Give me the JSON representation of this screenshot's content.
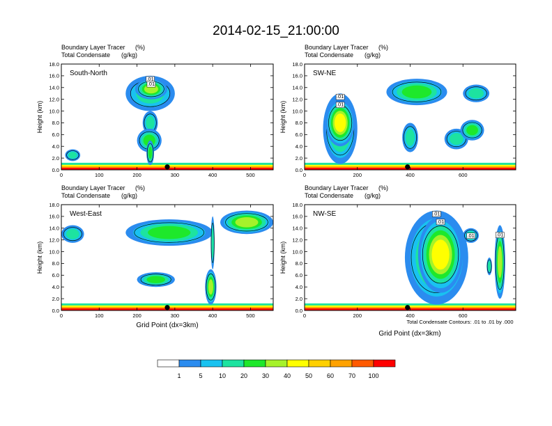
{
  "figure": {
    "title": "2014-02-15_21:00:00",
    "header_line1": "Boundary Layer Tracer",
    "header_line1_unit": "(%)",
    "header_line2": "Total Condensate",
    "header_line2_unit": "(g/kg)",
    "ylabel": "Height (km)",
    "xlabel": "Grid Point (dx=3km)",
    "contour_note": "Total Condensate Contours: .01 to .01 by .000"
  },
  "colorbar": {
    "labels": [
      "1",
      "5",
      "10",
      "20",
      "30",
      "40",
      "50",
      "60",
      "70",
      "100"
    ],
    "colors": [
      "#ffffff",
      "#2b8cef",
      "#19c2f0",
      "#1de3a0",
      "#1ee82b",
      "#a6f22a",
      "#ffff00",
      "#ffd000",
      "#ffa200",
      "#ff5a00",
      "#ff0000"
    ]
  },
  "chart_data": [
    {
      "type": "heatmap",
      "panel_label": "South-North",
      "xlim": [
        0,
        560
      ],
      "ylim": [
        0,
        18
      ],
      "xticks": [
        "0",
        "100",
        "200",
        "300",
        "400",
        "500"
      ],
      "yticks": [
        "0.0",
        "2.0",
        "4.0",
        "6.0",
        "8.0",
        "10.0",
        "12.0",
        "14.0",
        "16.0",
        "18.0"
      ],
      "contour_labels": [
        ".01",
        ".01"
      ],
      "marker_x": 280,
      "cells": [
        {
          "x": [
            170,
            300
          ],
          "y": [
            10,
            16
          ],
          "level": 3
        },
        {
          "x": [
            195,
            280
          ],
          "y": [
            12,
            15.5
          ],
          "level": 5
        },
        {
          "x": [
            215,
            255
          ],
          "y": [
            6,
            10
          ],
          "level": 3
        },
        {
          "x": [
            200,
            265
          ],
          "y": [
            3,
            7
          ],
          "level": 4
        },
        {
          "x": [
            225,
            245
          ],
          "y": [
            0.8,
            5
          ],
          "level": 4
        },
        {
          "x": [
            10,
            50
          ],
          "y": [
            1.5,
            3.5
          ],
          "level": 3
        }
      ]
    },
    {
      "type": "heatmap",
      "panel_label": "SW-NE",
      "xlim": [
        0,
        800
      ],
      "ylim": [
        0,
        18
      ],
      "xticks": [
        "0",
        "200",
        "400",
        "600"
      ],
      "yticks": [
        "0.0",
        "2.0",
        "4.0",
        "6.0",
        "8.0",
        "10.0",
        "12.0",
        "14.0",
        "16.0",
        "18.0"
      ],
      "contour_labels": [
        ".01",
        ".01"
      ],
      "marker_x": 390,
      "cells": [
        {
          "x": [
            70,
            200
          ],
          "y": [
            1,
            13
          ],
          "level": 4
        },
        {
          "x": [
            80,
            190
          ],
          "y": [
            4,
            12
          ],
          "level": 6
        },
        {
          "x": [
            310,
            540
          ],
          "y": [
            11,
            15.5
          ],
          "level": 4
        },
        {
          "x": [
            370,
            430
          ],
          "y": [
            3,
            8
          ],
          "level": 3
        },
        {
          "x": [
            530,
            620
          ],
          "y": [
            3.5,
            7
          ],
          "level": 3
        },
        {
          "x": [
            600,
            700
          ],
          "y": [
            11.5,
            14.5
          ],
          "level": 3
        },
        {
          "x": [
            590,
            680
          ],
          "y": [
            5,
            8.5
          ],
          "level": 4
        }
      ]
    },
    {
      "type": "heatmap",
      "panel_label": "West-East",
      "xlim": [
        0,
        560
      ],
      "ylim": [
        0,
        18
      ],
      "xticks": [
        "0",
        "100",
        "200",
        "300",
        "400",
        "500"
      ],
      "yticks": [
        "0.0",
        "2.0",
        "4.0",
        "6.0",
        "8.0",
        "10.0",
        "12.0",
        "14.0",
        "16.0",
        "18.0"
      ],
      "contour_labels": [],
      "marker_x": 280,
      "cells": [
        {
          "x": [
            0,
            60
          ],
          "y": [
            11.5,
            14.5
          ],
          "level": 3
        },
        {
          "x": [
            170,
            400
          ],
          "y": [
            11,
            15.5
          ],
          "level": 4
        },
        {
          "x": [
            420,
            560
          ],
          "y": [
            13,
            17
          ],
          "level": 5
        },
        {
          "x": [
            200,
            300
          ],
          "y": [
            4,
            6.5
          ],
          "level": 4
        },
        {
          "x": [
            380,
            410
          ],
          "y": [
            1,
            7
          ],
          "level": 5
        },
        {
          "x": [
            395,
            405
          ],
          "y": [
            7,
            16
          ],
          "level": 3
        }
      ]
    },
    {
      "type": "heatmap",
      "panel_label": "NW-SE",
      "xlim": [
        0,
        800
      ],
      "ylim": [
        0,
        18
      ],
      "xticks": [
        "0",
        "200",
        "400",
        "600"
      ],
      "yticks": [
        "0.0",
        "2.0",
        "4.0",
        "6.0",
        "8.0",
        "10.0",
        "12.0",
        "14.0",
        "16.0",
        "18.0"
      ],
      "contour_labels": [
        ".01",
        ".01",
        ".01",
        ".01"
      ],
      "marker_x": 390,
      "cells": [
        {
          "x": [
            380,
            620
          ],
          "y": [
            1,
            17
          ],
          "level": 4
        },
        {
          "x": [
            430,
            600
          ],
          "y": [
            3,
            16
          ],
          "level": 6
        },
        {
          "x": [
            600,
            660
          ],
          "y": [
            11.5,
            14
          ],
          "level": 3
        },
        {
          "x": [
            720,
            760
          ],
          "y": [
            2,
            14.5
          ],
          "level": 5
        },
        {
          "x": [
            690,
            710
          ],
          "y": [
            6,
            9
          ],
          "level": 3
        }
      ]
    }
  ]
}
